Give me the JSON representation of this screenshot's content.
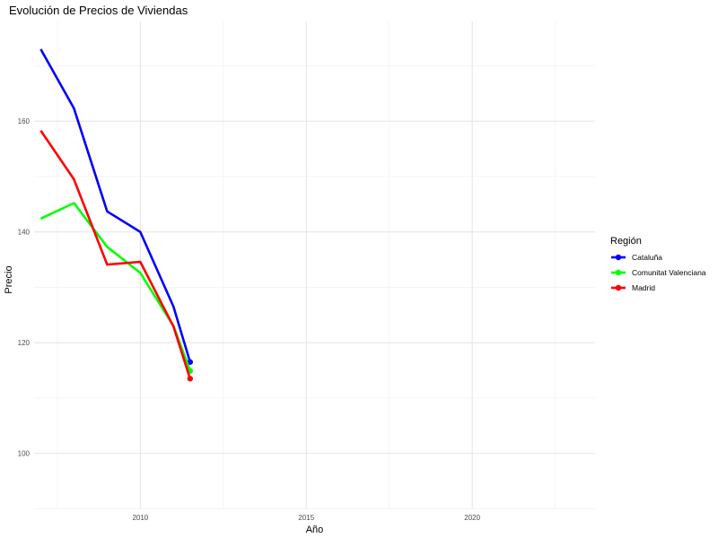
{
  "chart_data": {
    "type": "line",
    "title": "Evolución de Precios de Viviendas",
    "xlabel": "Año",
    "ylabel": "Precio",
    "xlim": [
      2006.8,
      2023.7
    ],
    "ylim": [
      89.9,
      178.0
    ],
    "x_ticks": [
      2010,
      2015,
      2020
    ],
    "y_ticks": [
      100,
      120,
      140,
      160
    ],
    "grid": true,
    "legend_title": "Región",
    "legend_position": "right",
    "series": [
      {
        "name": "Cataluña",
        "color": "#0000ff",
        "x": [
          2007,
          2008,
          2009,
          2010,
          2011,
          2011.5
        ],
        "values": [
          173.0,
          162.3,
          143.7,
          140.0,
          126.5,
          116.5
        ]
      },
      {
        "name": "Comunitat Valenciana",
        "color": "#00ff00",
        "x": [
          2007,
          2008,
          2009,
          2010,
          2011,
          2011.5
        ],
        "values": [
          142.4,
          145.2,
          137.3,
          132.6,
          123.0,
          114.9
        ]
      },
      {
        "name": "Madrid",
        "color": "#ff0000",
        "x": [
          2007,
          2008,
          2009,
          2010,
          2011,
          2011.5
        ],
        "values": [
          158.3,
          149.5,
          134.1,
          134.6,
          122.9,
          113.5
        ]
      }
    ]
  }
}
